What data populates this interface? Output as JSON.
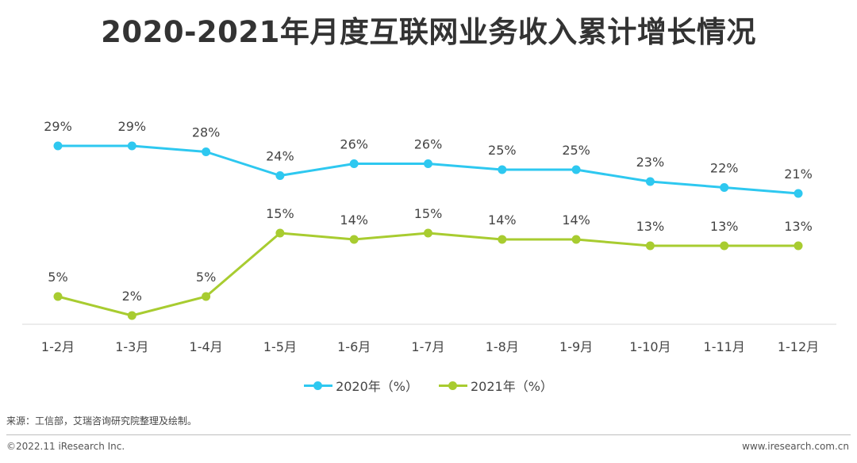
{
  "title": "2020-2021年月度互联网业务收入累计增长情况",
  "colors": {
    "s2020": "#2ec8f0",
    "s2021": "#a8cc30"
  },
  "chart_data": {
    "type": "line",
    "categories": [
      "1-2月",
      "1-3月",
      "1-4月",
      "1-5月",
      "1-6月",
      "1-7月",
      "1-8月",
      "1-9月",
      "1-10月",
      "1-11月",
      "1-12月"
    ],
    "series": [
      {
        "name": "2020年（%）",
        "values": [
          29,
          29,
          28,
          24,
          26,
          26,
          25,
          25,
          23,
          22,
          21
        ],
        "labels": [
          "29%",
          "29%",
          "28%",
          "24%",
          "26%",
          "26%",
          "25%",
          "25%",
          "23%",
          "22%",
          "21%"
        ]
      },
      {
        "name": "2021年（%）",
        "values": [
          5,
          2,
          5,
          15,
          14,
          15,
          14,
          14,
          13,
          13,
          13
        ],
        "labels": [
          "5%",
          "2%",
          "5%",
          "15%",
          "14%",
          "15%",
          "14%",
          "14%",
          "13%",
          "13%",
          "13%"
        ]
      }
    ],
    "legend_position": "bottom",
    "grid": false
  },
  "source": "来源：工信部，艾瑞咨询研究院整理及绘制。",
  "footer": {
    "left": "©2022.11 iResearch Inc.",
    "right": "www.iresearch.com.cn"
  }
}
